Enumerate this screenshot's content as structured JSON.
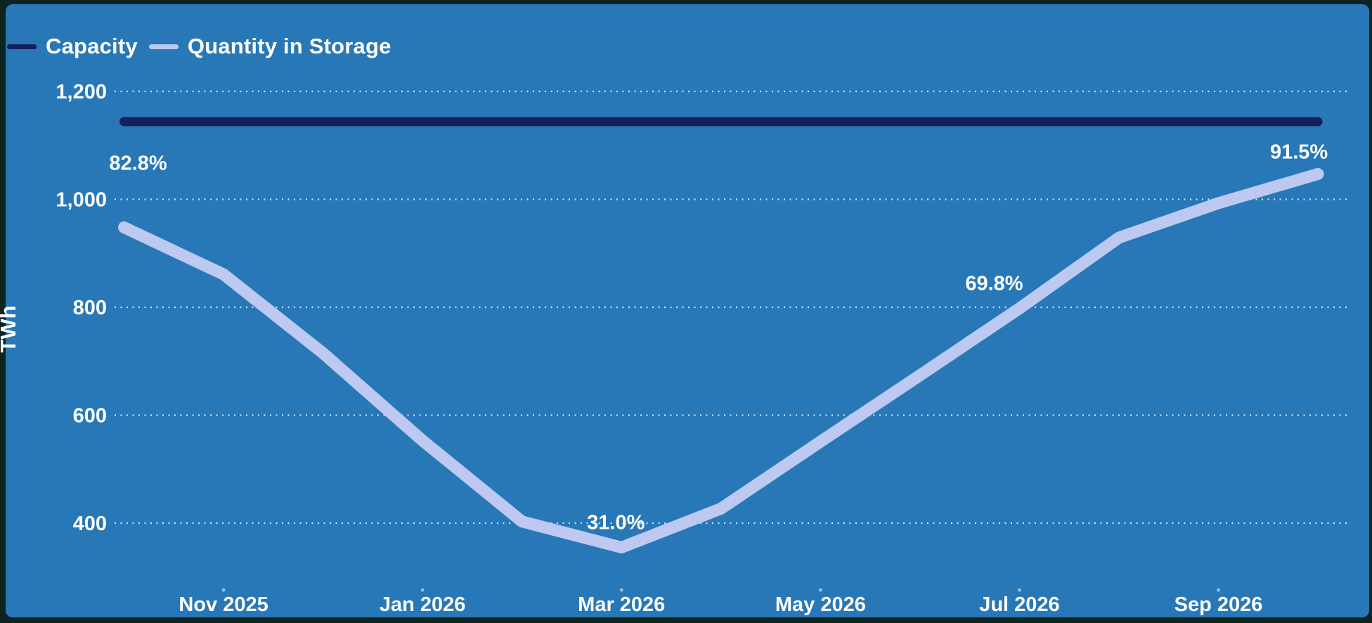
{
  "chart_data": {
    "type": "line",
    "title": "",
    "ylabel": "TWh",
    "xlabel": "",
    "grid": "dotted-horizontal",
    "legend_position": "top-left",
    "background_color": "#2878b8",
    "frame_color": "#0c2521",
    "text_color": "#ffffff",
    "x_months": [
      "Oct 2025",
      "Nov 2025",
      "Dec 2025",
      "Jan 2026",
      "Feb 2026",
      "Mar 2026",
      "Apr 2026",
      "May 2026",
      "Jun 2026",
      "Jul 2026",
      "Aug 2026",
      "Sep 2026",
      "Oct 2026"
    ],
    "x_tick_labels": [
      "Nov 2025",
      "Jan 2026",
      "Mar 2026",
      "May 2026",
      "Jul 2026",
      "Sep 2026"
    ],
    "x_tick_month_indices": [
      1,
      3,
      5,
      7,
      9,
      11
    ],
    "y_ticks": [
      400,
      600,
      800,
      1000,
      1200
    ],
    "y_tick_labels": [
      "400",
      "600",
      "800",
      "1,000",
      "1,200"
    ],
    "ylim": [
      300,
      1250
    ],
    "series": [
      {
        "name": "Capacity",
        "color": "#141f5c",
        "constant_value": 1144
      },
      {
        "name": "Quantity in Storage",
        "color": "#bdc9f0",
        "values": [
          948,
          861,
          715,
          553,
          403,
          355,
          427,
          551,
          674,
          798,
          929,
          993,
          1047
        ]
      }
    ],
    "annotations": [
      {
        "text": "82.8%",
        "month_index": 0
      },
      {
        "text": "31.0%",
        "month_index": 5
      },
      {
        "text": "69.8%",
        "month_index": 9
      },
      {
        "text": "91.5%",
        "month_index": 12
      }
    ]
  }
}
